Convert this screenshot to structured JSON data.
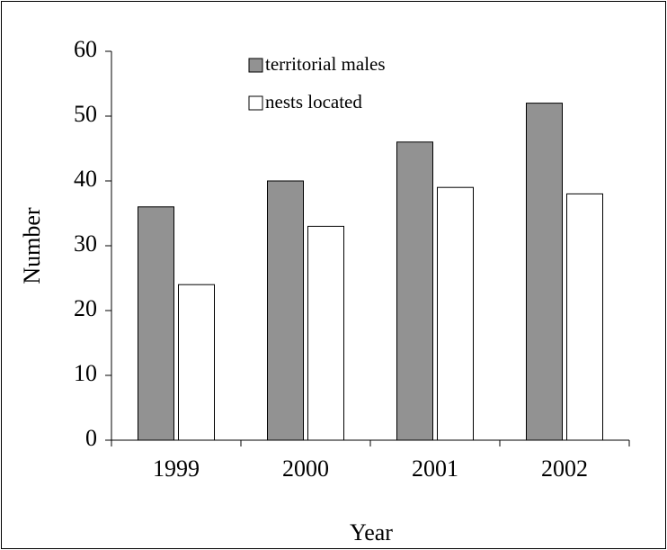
{
  "chart_data": {
    "type": "bar",
    "x_label": "Year",
    "y_label": "Number",
    "categories": [
      "1999",
      "2000",
      "2001",
      "2002"
    ],
    "series": [
      {
        "name": "territorial males",
        "color": "#929292",
        "values": [
          36,
          40,
          46,
          52
        ]
      },
      {
        "name": "nests located",
        "color": "#ffffff",
        "values": [
          24,
          33,
          39,
          38
        ]
      }
    ],
    "ylim": [
      0,
      60
    ],
    "yticks": [
      0,
      10,
      20,
      30,
      40,
      50,
      60
    ],
    "grid": false,
    "legend": "top"
  }
}
